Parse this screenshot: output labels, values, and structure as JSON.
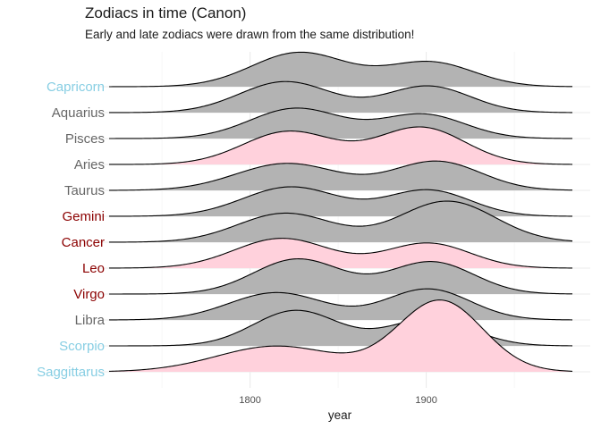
{
  "chart_data": {
    "type": "ridgeline",
    "title": "Zodiacs in time (Canon)",
    "subtitle": "Early and late zodiacs were drawn from the same distribution!",
    "xlabel": "year",
    "ylabel": "",
    "xlim": [
      1720,
      1985
    ],
    "x_ticks": [
      1800,
      1900
    ],
    "x_tick_labels": [
      "1800",
      "1900"
    ],
    "grid": true,
    "legend": "none",
    "colors": {
      "grey_fill": "#b3b3b3",
      "pink_fill": "#ffd1dc",
      "label_light_blue": "#87cee3",
      "label_grey": "#666666",
      "label_dark_red": "#8b0000"
    },
    "series": [
      {
        "name": "Capricorn",
        "label_color": "#87cee3",
        "fill": "grey",
        "components": [
          {
            "mu": 1828,
            "sd": 27,
            "h": 0.85
          },
          {
            "mu": 1902,
            "sd": 25,
            "h": 0.61
          }
        ]
      },
      {
        "name": "Aquarius",
        "label_color": "#666666",
        "fill": "grey",
        "components": [
          {
            "mu": 1820,
            "sd": 26,
            "h": 0.77
          },
          {
            "mu": 1901,
            "sd": 24,
            "h": 0.66
          }
        ]
      },
      {
        "name": "Pisces",
        "label_color": "#666666",
        "fill": "grey",
        "components": [
          {
            "mu": 1826,
            "sd": 26,
            "h": 0.75
          },
          {
            "mu": 1898,
            "sd": 24,
            "h": 0.6
          }
        ]
      },
      {
        "name": "Aries",
        "label_color": "#666666",
        "fill": "pink",
        "components": [
          {
            "mu": 1822,
            "sd": 26,
            "h": 0.82
          },
          {
            "mu": 1897,
            "sd": 25,
            "h": 0.92
          }
        ]
      },
      {
        "name": "Taurus",
        "label_color": "#666666",
        "fill": "grey",
        "components": [
          {
            "mu": 1821,
            "sd": 29,
            "h": 0.67
          },
          {
            "mu": 1906,
            "sd": 25,
            "h": 0.72
          }
        ]
      },
      {
        "name": "Gemini",
        "label_color": "#8b0000",
        "fill": "grey",
        "components": [
          {
            "mu": 1823,
            "sd": 27,
            "h": 0.73
          },
          {
            "mu": 1901,
            "sd": 24,
            "h": 0.65
          }
        ]
      },
      {
        "name": "Cancer",
        "label_color": "#8b0000",
        "fill": "grey",
        "components": [
          {
            "mu": 1820,
            "sd": 27,
            "h": 0.72
          },
          {
            "mu": 1912,
            "sd": 27,
            "h": 1.02
          }
        ]
      },
      {
        "name": "Leo",
        "label_color": "#8b0000",
        "fill": "pink",
        "components": [
          {
            "mu": 1818,
            "sd": 27,
            "h": 0.74
          },
          {
            "mu": 1901,
            "sd": 24,
            "h": 0.62
          }
        ]
      },
      {
        "name": "Virgo",
        "label_color": "#8b0000",
        "fill": "grey",
        "components": [
          {
            "mu": 1827,
            "sd": 25,
            "h": 0.87
          },
          {
            "mu": 1903,
            "sd": 24,
            "h": 0.8
          }
        ]
      },
      {
        "name": "Libra",
        "label_color": "#666666",
        "fill": "grey",
        "components": [
          {
            "mu": 1815,
            "sd": 27,
            "h": 0.68
          },
          {
            "mu": 1901,
            "sd": 24,
            "h": 0.77
          }
        ]
      },
      {
        "name": "Scorpio",
        "label_color": "#87cee3",
        "fill": "grey",
        "components": [
          {
            "mu": 1826,
            "sd": 24,
            "h": 0.88
          },
          {
            "mu": 1902,
            "sd": 24,
            "h": 0.66
          }
        ]
      },
      {
        "name": "Saggittarus",
        "label_color": "#87cee3",
        "fill": "pink",
        "components": [
          {
            "mu": 1815,
            "sd": 34,
            "h": 0.64
          },
          {
            "mu": 1908,
            "sd": 24,
            "h": 1.77
          }
        ]
      }
    ]
  }
}
